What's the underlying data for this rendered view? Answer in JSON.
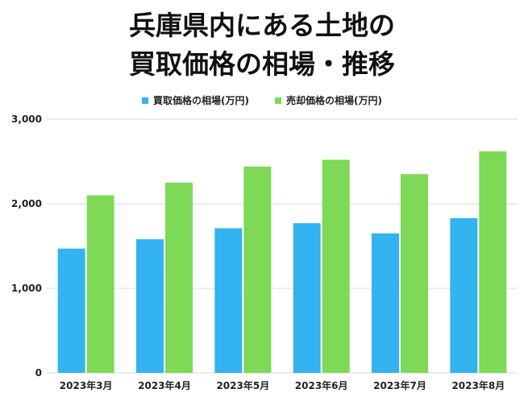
{
  "title_line1": "兵庫県内にある土地の",
  "title_line2": "買取価格の相場・推移",
  "chart_data": {
    "type": "bar",
    "categories": [
      "2023年3月",
      "2023年4月",
      "2023年5月",
      "2023年6月",
      "2023年7月",
      "2023年8月"
    ],
    "series": [
      {
        "name": "買取価格の相場(万円)",
        "color": "#33b3f0",
        "values": [
          1470,
          1580,
          1710,
          1770,
          1650,
          1830
        ]
      },
      {
        "name": "売却価格の相場(万円)",
        "color": "#7ed957",
        "values": [
          2100,
          2250,
          2440,
          2520,
          2350,
          2620
        ]
      }
    ],
    "yticks": [
      "0",
      "1,000",
      "2,000",
      "3,000"
    ],
    "ylim": [
      0,
      3000
    ],
    "grid": true,
    "legend_position": "top-center"
  }
}
